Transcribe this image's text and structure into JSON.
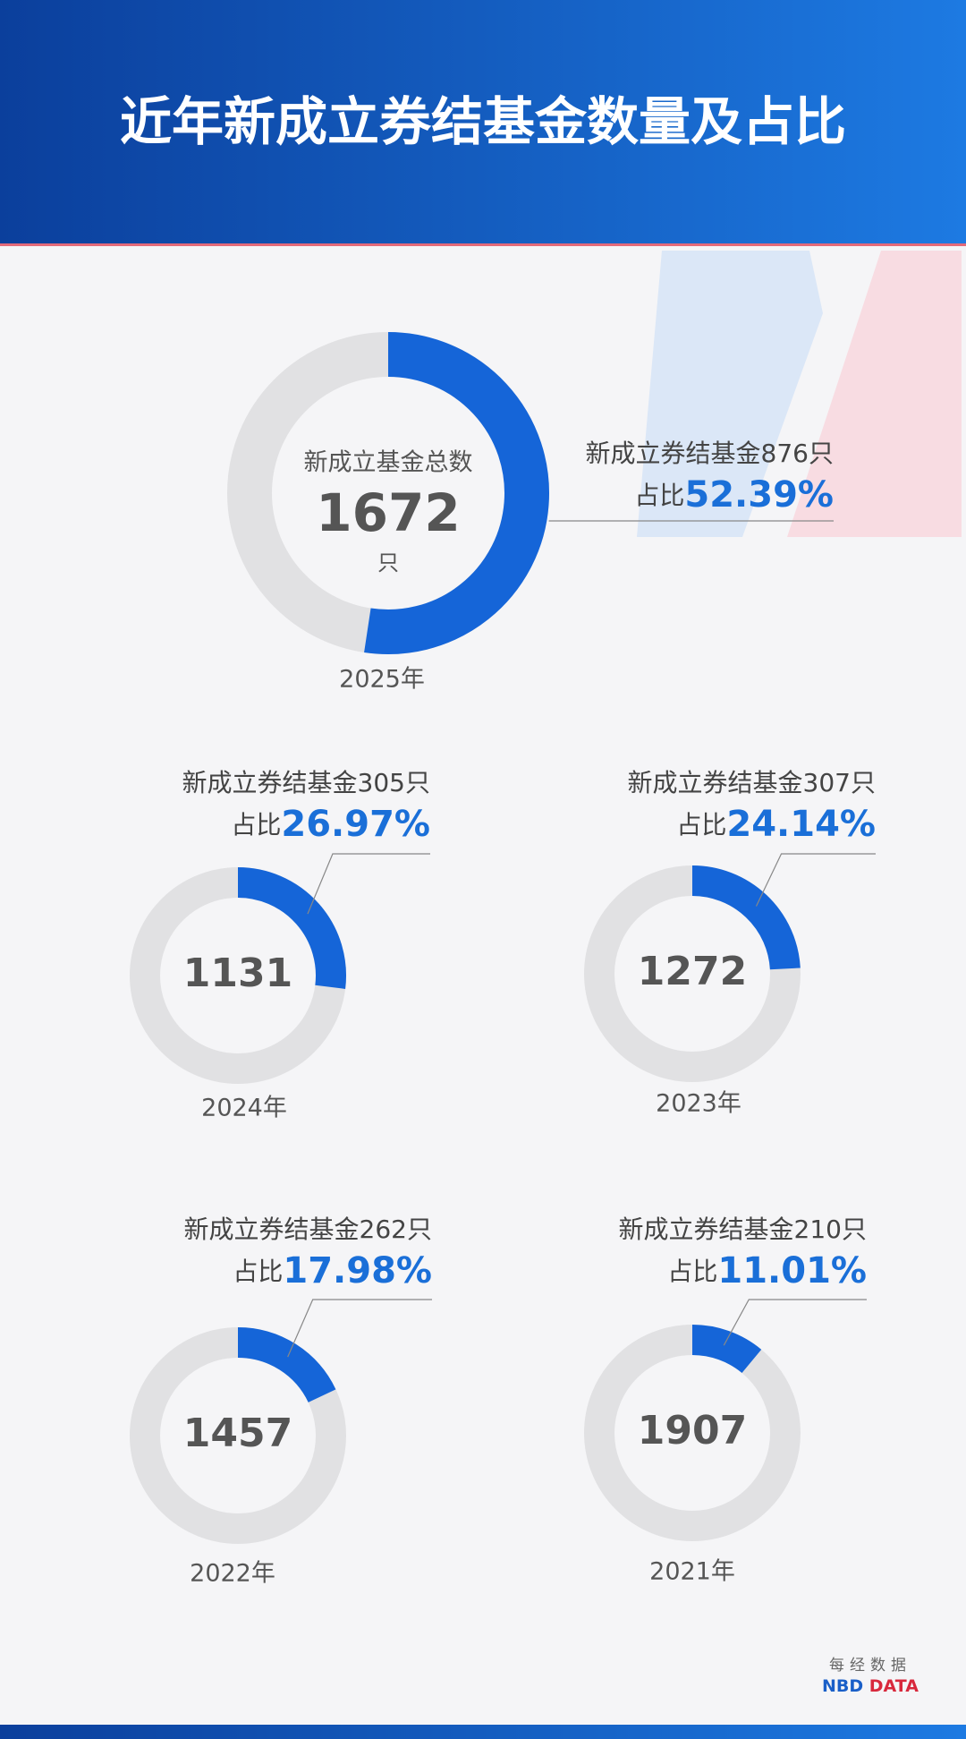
{
  "header": {
    "title": "近年新成立券结基金数量及占比"
  },
  "chart_data": [
    {
      "type": "donut",
      "title": "2025年",
      "center_label": "新成立基金总数",
      "total": 1672,
      "total_unit": "只",
      "categories": [
        "新成立券结基金876只"
      ],
      "value_prefix": "占比",
      "values": [
        52.39
      ],
      "value_labels": [
        "52.39%"
      ],
      "color": "#1565d8",
      "track_color": "#e1e1e3"
    },
    {
      "type": "donut",
      "title": "2024年",
      "total": 1131,
      "categories": [
        "新成立券结基金305只"
      ],
      "value_prefix": "占比",
      "values": [
        26.97
      ],
      "value_labels": [
        "26.97%"
      ],
      "color": "#1565d8",
      "track_color": "#e1e1e3"
    },
    {
      "type": "donut",
      "title": "2023年",
      "total": 1272,
      "categories": [
        "新成立券结基金307只"
      ],
      "value_prefix": "占比",
      "values": [
        24.14
      ],
      "value_labels": [
        "24.14%"
      ],
      "color": "#1565d8",
      "track_color": "#e1e1e3"
    },
    {
      "type": "donut",
      "title": "2022年",
      "total": 1457,
      "categories": [
        "新成立券结基金262只"
      ],
      "value_prefix": "占比",
      "values": [
        17.98
      ],
      "value_labels": [
        "17.98%"
      ],
      "color": "#1565d8",
      "track_color": "#e1e1e3"
    },
    {
      "type": "donut",
      "title": "2021年",
      "total": 1907,
      "categories": [
        "新成立券结基金210只"
      ],
      "value_prefix": "占比",
      "values": [
        11.01
      ],
      "value_labels": [
        "11.01%"
      ],
      "color": "#1565d8",
      "track_color": "#e1e1e3"
    }
  ],
  "footer": {
    "brand_cn": "每经数据",
    "brand_nbd": "NBD",
    "brand_data": "DATA"
  }
}
